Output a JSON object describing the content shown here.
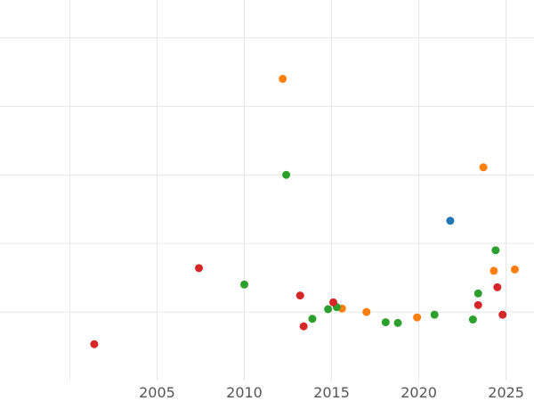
{
  "chart_data": {
    "type": "scatter",
    "title": "",
    "xlabel": "",
    "ylabel": "",
    "grid": true,
    "xlim": [
      1996.0,
      2026.6
    ],
    "ylim": [
      0,
      5.55
    ],
    "xticks": [
      {
        "value": 2005,
        "label": "2005"
      },
      {
        "value": 2010,
        "label": "2010"
      },
      {
        "value": 2015,
        "label": "2015"
      },
      {
        "value": 2020,
        "label": "2020"
      },
      {
        "value": 2025,
        "label": "2025"
      }
    ],
    "ygrid": [
      1,
      2,
      3,
      4,
      5
    ],
    "series": [
      {
        "color": "#1f77b4",
        "points": [
          {
            "x": 2021.8,
            "y": 2.33
          }
        ]
      },
      {
        "color": "#ff7f0e",
        "points": [
          {
            "x": 2012.2,
            "y": 4.4
          },
          {
            "x": 2023.7,
            "y": 3.11
          },
          {
            "x": 2025.5,
            "y": 1.62
          },
          {
            "x": 2024.3,
            "y": 1.6
          },
          {
            "x": 2015.6,
            "y": 1.05
          },
          {
            "x": 2017.0,
            "y": 1.0
          },
          {
            "x": 2019.9,
            "y": 0.92
          }
        ]
      },
      {
        "color": "#2ca02c",
        "points": [
          {
            "x": 2012.4,
            "y": 3.0
          },
          {
            "x": 2024.4,
            "y": 1.9
          },
          {
            "x": 2010.0,
            "y": 1.4
          },
          {
            "x": 2023.4,
            "y": 1.27
          },
          {
            "x": 2015.3,
            "y": 1.07
          },
          {
            "x": 2014.8,
            "y": 1.04
          },
          {
            "x": 2020.9,
            "y": 0.96
          },
          {
            "x": 2013.9,
            "y": 0.9
          },
          {
            "x": 2023.1,
            "y": 0.89
          },
          {
            "x": 2018.1,
            "y": 0.85
          },
          {
            "x": 2018.8,
            "y": 0.84
          }
        ]
      },
      {
        "color": "#d62728",
        "points": [
          {
            "x": 2007.4,
            "y": 1.64
          },
          {
            "x": 2024.5,
            "y": 1.36
          },
          {
            "x": 2013.2,
            "y": 1.24
          },
          {
            "x": 2015.1,
            "y": 1.14
          },
          {
            "x": 2023.4,
            "y": 1.1
          },
          {
            "x": 2024.8,
            "y": 0.96
          },
          {
            "x": 2013.4,
            "y": 0.79
          },
          {
            "x": 2001.4,
            "y": 0.53
          }
        ]
      }
    ]
  }
}
